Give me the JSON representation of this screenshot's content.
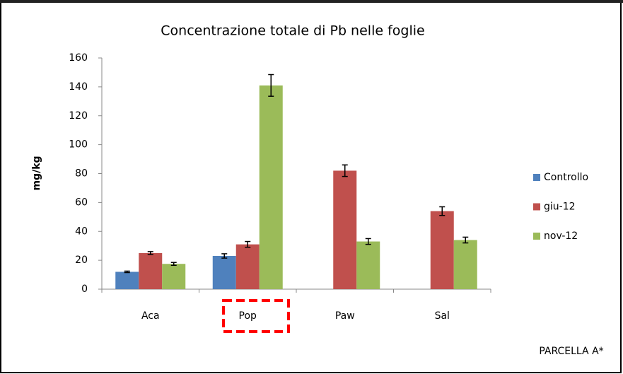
{
  "chart_data": {
    "type": "bar",
    "title": "Concentrazione totale di Pb nelle foglie",
    "ylabel": "mg/kg",
    "annotation": "PARCELLA A*",
    "categories": [
      "Aca",
      "Pop",
      "Paw",
      "Sal"
    ],
    "series": [
      {
        "name": "Controllo",
        "color": "#4f81bd",
        "values": [
          12,
          23,
          null,
          null
        ],
        "errors": [
          0.5,
          1.5,
          null,
          null
        ]
      },
      {
        "name": "giu-12",
        "color": "#c0504d",
        "values": [
          25,
          31,
          82,
          54
        ],
        "errors": [
          1,
          2,
          4,
          3
        ]
      },
      {
        "name": "nov-12",
        "color": "#9bbb59",
        "values": [
          17.5,
          141,
          33,
          34
        ],
        "errors": [
          1,
          7.5,
          2,
          2
        ]
      }
    ],
    "ylim": [
      0,
      160
    ],
    "yticks": [
      0,
      20,
      40,
      60,
      80,
      100,
      120,
      140,
      160
    ],
    "grid": false,
    "legend": "right"
  }
}
